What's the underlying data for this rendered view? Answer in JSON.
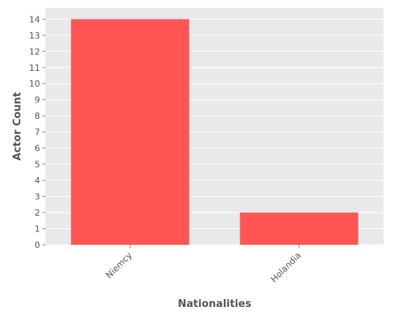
{
  "chart_data": {
    "type": "bar",
    "title": "",
    "xlabel": "Nationalities",
    "ylabel": "Actor Count",
    "categories": [
      "Niemcy",
      "Holandia"
    ],
    "values": [
      14,
      2
    ],
    "ylim": [
      0,
      14.7
    ],
    "yticks": [
      0,
      1,
      2,
      3,
      4,
      5,
      6,
      7,
      8,
      9,
      10,
      11,
      12,
      13,
      14
    ],
    "grid": true,
    "legend": "none",
    "colors": {
      "bar": "#ff5555",
      "plot_background": "#e9e9e9",
      "grid": "#ffffff",
      "text": "#555555"
    }
  }
}
